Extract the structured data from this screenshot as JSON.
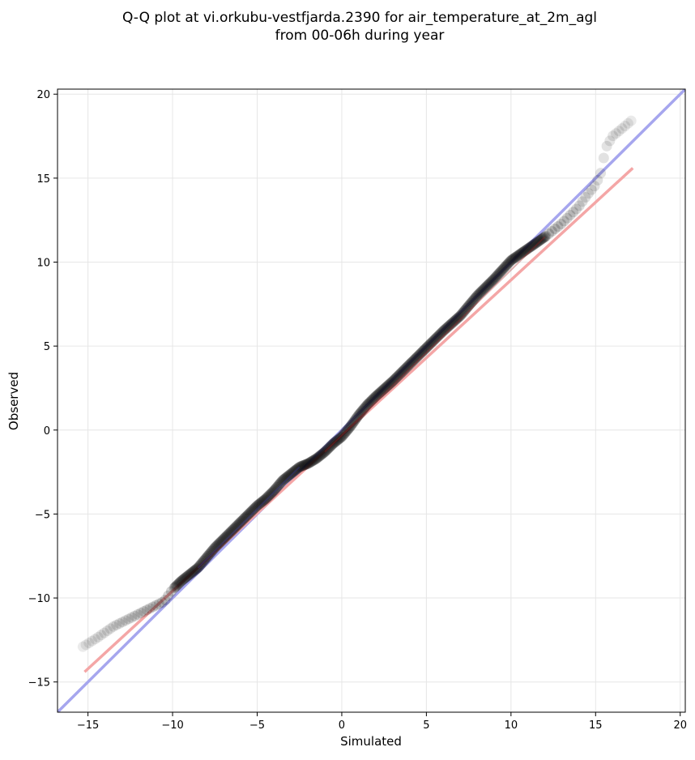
{
  "chart_data": {
    "type": "scatter",
    "title_line1": "Q-Q plot at vi.orkubu-vestfjarda.2390 for air_temperature_at_2m_agl",
    "title_line2": "from 00-06h during year",
    "xlabel": "Simulated",
    "ylabel": "Observed",
    "xlim": [
      -16.8,
      20.3
    ],
    "ylim": [
      -16.8,
      20.3
    ],
    "xticks": [
      -15,
      -10,
      -5,
      0,
      5,
      10,
      15,
      20
    ],
    "yticks": [
      -15,
      -10,
      -5,
      0,
      5,
      10,
      15,
      20
    ],
    "tick_labels": [
      "−15",
      "−10",
      "−5",
      "0",
      "5",
      "10",
      "15",
      "20"
    ],
    "grid": true,
    "reference_line": {
      "from": [
        -16.8,
        -16.8
      ],
      "to": [
        20.3,
        20.3
      ],
      "color": "#a6a6ee"
    },
    "fit_line": {
      "from": [
        -15.2,
        -14.4
      ],
      "to": [
        17.2,
        15.6
      ],
      "color": "#f4a6a6"
    },
    "qq_curve": {
      "x": [
        -15.3,
        -14.5,
        -13.5,
        -12.5,
        -11.5,
        -10.5,
        -10,
        -9.5,
        -9,
        -8.5,
        -8,
        -7.5,
        -7,
        -6.5,
        -6,
        -5.5,
        -5,
        -4.5,
        -4,
        -3.5,
        -3,
        -2.5,
        -2,
        -1.5,
        -1,
        -0.5,
        0,
        0.5,
        1,
        1.5,
        2,
        3,
        4,
        5,
        6,
        7,
        8,
        9,
        10,
        11,
        12,
        12.5,
        13,
        13.5,
        14,
        14.5,
        15,
        15.3,
        15.6,
        16,
        16.5,
        17.2
      ],
      "y": [
        -12.9,
        -12.4,
        -11.7,
        -11.2,
        -10.7,
        -10.2,
        -9.5,
        -9.0,
        -8.6,
        -8.2,
        -7.6,
        -7.0,
        -6.5,
        -6.0,
        -5.5,
        -5.0,
        -4.5,
        -4.1,
        -3.6,
        -3.0,
        -2.6,
        -2.2,
        -2.0,
        -1.7,
        -1.3,
        -0.8,
        -0.4,
        0.2,
        0.9,
        1.5,
        2.0,
        2.9,
        3.9,
        4.9,
        5.9,
        6.8,
        8.0,
        9.0,
        10.1,
        10.8,
        11.5,
        11.9,
        12.3,
        12.8,
        13.3,
        14.0,
        14.6,
        15.3,
        16.8,
        17.5,
        17.9,
        18.5
      ]
    }
  }
}
